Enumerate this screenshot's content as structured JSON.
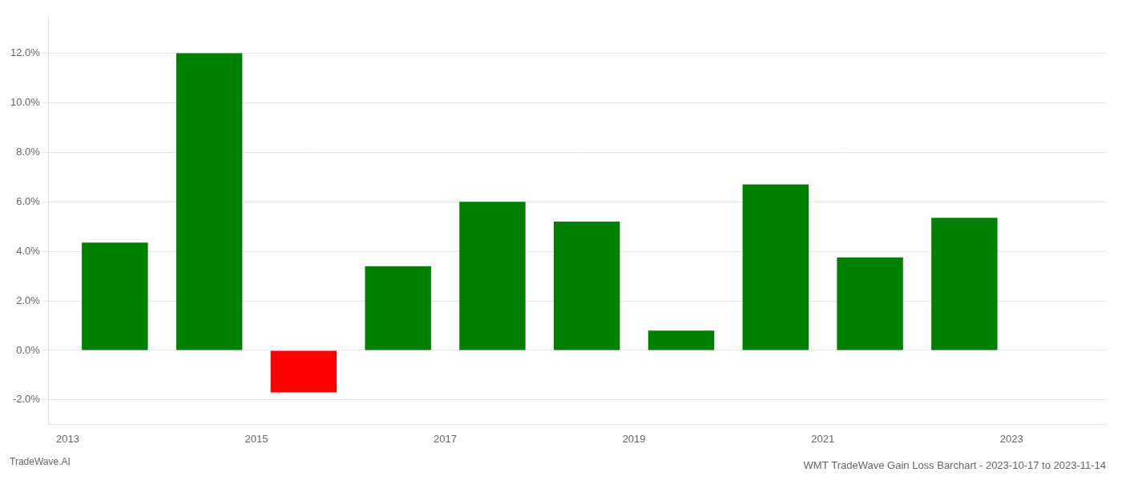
{
  "chart_data": {
    "type": "bar",
    "title": "WMT TradeWave Gain Loss Barchart - 2023-10-17 to 2023-11-14",
    "annotations": [
      "TradeWave.AI"
    ],
    "x": [
      2013.5,
      2014.5,
      2015.5,
      2016.5,
      2017.5,
      2018.5,
      2019.5,
      2020.5,
      2021.5,
      2022.5
    ],
    "values": [
      0.0435,
      0.12,
      -0.017,
      0.034,
      0.06,
      0.052,
      0.008,
      0.067,
      0.0375,
      0.0535
    ],
    "colors": [
      "#008000",
      "#008000",
      "#ff0000",
      "#008000",
      "#008000",
      "#008000",
      "#008000",
      "#008000",
      "#008000",
      "#008000"
    ],
    "xlim": [
      2012.8,
      2024.0
    ],
    "xticks": [
      2013,
      2015,
      2017,
      2019,
      2021,
      2023
    ],
    "ylim": [
      -0.03,
      0.135
    ],
    "yticks": [
      {
        "value": -0.02,
        "label": "-2.0%"
      },
      {
        "value": 0.0,
        "label": "0.0%"
      },
      {
        "value": 0.02,
        "label": "2.0%"
      },
      {
        "value": 0.04,
        "label": "4.0%"
      },
      {
        "value": 0.06,
        "label": "6.0%"
      },
      {
        "value": 0.08,
        "label": "8.0%"
      },
      {
        "value": 0.1,
        "label": "10.0%"
      },
      {
        "value": 0.12,
        "label": "12.0%"
      }
    ],
    "grid": true
  }
}
